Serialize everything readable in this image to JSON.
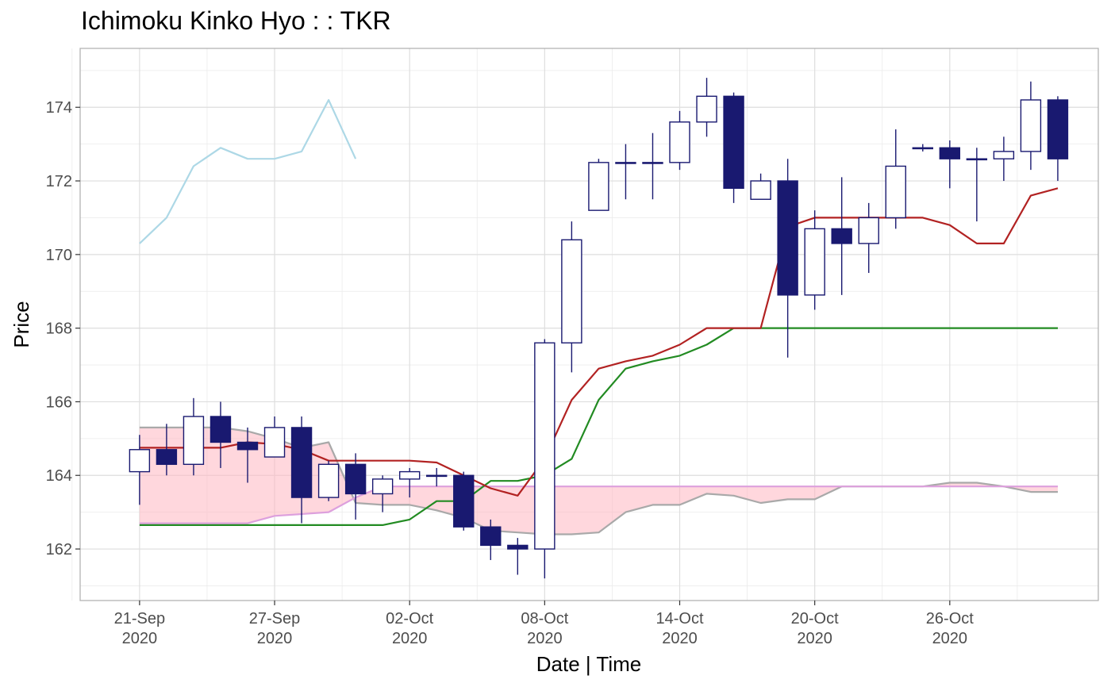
{
  "chart_data": {
    "type": "candlestick",
    "title": "Ichimoku Kinko Hyo : : TKR",
    "xlabel": "Date | Time",
    "ylabel": "Price",
    "ylim": [
      160.6,
      175.6
    ],
    "yticks": [
      162,
      164,
      166,
      168,
      170,
      172,
      174
    ],
    "xlim": [
      -2.2,
      35.5
    ],
    "xticks": [
      {
        "i": 0,
        "label1": "21-Sep",
        "label2": "2020"
      },
      {
        "i": 5,
        "label1": "27-Sep",
        "label2": "2020"
      },
      {
        "i": 10,
        "label1": "02-Oct",
        "label2": "2020"
      },
      {
        "i": 15,
        "label1": "08-Oct",
        "label2": "2020"
      },
      {
        "i": 20,
        "label1": "14-Oct",
        "label2": "2020"
      },
      {
        "i": 25,
        "label1": "20-Oct",
        "label2": "2020"
      },
      {
        "i": 30,
        "label1": "26-Oct",
        "label2": "2020"
      }
    ],
    "colors": {
      "up_fill": "#ffffff",
      "down_fill": "#191970",
      "candle_border": "#191970",
      "tenkan": "#b22222",
      "kijun": "#228b22",
      "chikou": "#add8e6",
      "cloud_fill": "#ffb6c1",
      "senkou_a": "#dda0dd",
      "senkou_b": "#a9a9a9"
    },
    "candles": [
      {
        "i": 0,
        "open": 164.1,
        "high": 165.1,
        "low": 163.2,
        "close": 164.7
      },
      {
        "i": 1,
        "open": 164.7,
        "high": 165.4,
        "low": 164.0,
        "close": 164.3
      },
      {
        "i": 2,
        "open": 164.3,
        "high": 166.1,
        "low": 164.0,
        "close": 165.6
      },
      {
        "i": 3,
        "open": 165.6,
        "high": 166.0,
        "low": 164.2,
        "close": 164.9
      },
      {
        "i": 4,
        "open": 164.9,
        "high": 165.3,
        "low": 163.8,
        "close": 164.7
      },
      {
        "i": 5,
        "open": 164.5,
        "high": 165.6,
        "low": 164.5,
        "close": 165.3
      },
      {
        "i": 6,
        "open": 165.3,
        "high": 165.6,
        "low": 162.7,
        "close": 163.4
      },
      {
        "i": 7,
        "open": 163.4,
        "high": 164.4,
        "low": 163.3,
        "close": 164.3
      },
      {
        "i": 8,
        "open": 164.3,
        "high": 164.6,
        "low": 162.8,
        "close": 163.5
      },
      {
        "i": 9,
        "open": 163.5,
        "high": 164.0,
        "low": 163.0,
        "close": 163.9
      },
      {
        "i": 10,
        "open": 163.9,
        "high": 164.2,
        "low": 163.4,
        "close": 164.1
      },
      {
        "i": 11,
        "open": 164.0,
        "high": 164.2,
        "low": 163.7,
        "close": 164.0
      },
      {
        "i": 12,
        "open": 164.0,
        "high": 164.1,
        "low": 162.5,
        "close": 162.6
      },
      {
        "i": 13,
        "open": 162.6,
        "high": 162.8,
        "low": 161.7,
        "close": 162.1
      },
      {
        "i": 14,
        "open": 162.1,
        "high": 162.3,
        "low": 161.3,
        "close": 162.0
      },
      {
        "i": 15,
        "open": 162.0,
        "high": 167.7,
        "low": 161.2,
        "close": 167.6
      },
      {
        "i": 16,
        "open": 167.6,
        "high": 170.9,
        "low": 166.8,
        "close": 170.4
      },
      {
        "i": 17,
        "open": 171.2,
        "high": 172.6,
        "low": 171.2,
        "close": 172.5
      },
      {
        "i": 18,
        "open": 172.5,
        "high": 173.0,
        "low": 171.5,
        "close": 172.5
      },
      {
        "i": 19,
        "open": 172.5,
        "high": 173.3,
        "low": 171.5,
        "close": 172.5
      },
      {
        "i": 20,
        "open": 172.5,
        "high": 173.9,
        "low": 172.3,
        "close": 173.6
      },
      {
        "i": 21,
        "open": 173.6,
        "high": 174.8,
        "low": 173.2,
        "close": 174.3
      },
      {
        "i": 22,
        "open": 174.3,
        "high": 174.4,
        "low": 171.4,
        "close": 171.8
      },
      {
        "i": 23,
        "open": 171.5,
        "high": 172.2,
        "low": 171.5,
        "close": 172.0
      },
      {
        "i": 24,
        "open": 172.0,
        "high": 172.6,
        "low": 167.2,
        "close": 168.9
      },
      {
        "i": 25,
        "open": 168.9,
        "high": 171.2,
        "low": 168.5,
        "close": 170.7
      },
      {
        "i": 26,
        "open": 170.7,
        "high": 172.1,
        "low": 168.9,
        "close": 170.3
      },
      {
        "i": 27,
        "open": 170.3,
        "high": 171.4,
        "low": 169.5,
        "close": 171.0
      },
      {
        "i": 28,
        "open": 171.0,
        "high": 173.4,
        "low": 170.7,
        "close": 172.4
      },
      {
        "i": 29,
        "open": 172.9,
        "high": 173.0,
        "low": 172.8,
        "close": 172.9
      },
      {
        "i": 30,
        "open": 172.9,
        "high": 173.1,
        "low": 171.8,
        "close": 172.6
      },
      {
        "i": 31,
        "open": 172.6,
        "high": 172.9,
        "low": 170.9,
        "close": 172.6
      },
      {
        "i": 32,
        "open": 172.6,
        "high": 173.2,
        "low": 172.0,
        "close": 172.8
      },
      {
        "i": 33,
        "open": 172.8,
        "high": 174.7,
        "low": 172.3,
        "close": 174.2
      },
      {
        "i": 34,
        "open": 174.2,
        "high": 174.3,
        "low": 172.0,
        "close": 172.6
      }
    ],
    "tenkan": [
      [
        0,
        164.75
      ],
      [
        1,
        164.75
      ],
      [
        2,
        164.75
      ],
      [
        3,
        164.75
      ],
      [
        4,
        164.9
      ],
      [
        5,
        164.85
      ],
      [
        6,
        164.7
      ],
      [
        7,
        164.4
      ],
      [
        8,
        164.4
      ],
      [
        9,
        164.4
      ],
      [
        10,
        164.4
      ],
      [
        11,
        164.35
      ],
      [
        12,
        164.0
      ],
      [
        13,
        163.65
      ],
      [
        14,
        163.45
      ],
      [
        15,
        164.45
      ],
      [
        16,
        166.05
      ],
      [
        17,
        166.9
      ],
      [
        18,
        167.1
      ],
      [
        19,
        167.25
      ],
      [
        20,
        167.55
      ],
      [
        21,
        168.0
      ],
      [
        22,
        168.0
      ],
      [
        23,
        168.0
      ],
      [
        24,
        170.75
      ],
      [
        25,
        171.0
      ],
      [
        26,
        171.0
      ],
      [
        27,
        171.0
      ],
      [
        28,
        171.0
      ],
      [
        29,
        171.0
      ],
      [
        30,
        170.8
      ],
      [
        31,
        170.3
      ],
      [
        32,
        170.3
      ],
      [
        33,
        171.6
      ],
      [
        34,
        171.8
      ]
    ],
    "kijun": [
      [
        0,
        162.65
      ],
      [
        1,
        162.65
      ],
      [
        2,
        162.65
      ],
      [
        3,
        162.65
      ],
      [
        4,
        162.65
      ],
      [
        5,
        162.65
      ],
      [
        6,
        162.65
      ],
      [
        7,
        162.65
      ],
      [
        8,
        162.65
      ],
      [
        9,
        162.65
      ],
      [
        10,
        162.8
      ],
      [
        11,
        163.3
      ],
      [
        12,
        163.3
      ],
      [
        13,
        163.85
      ],
      [
        14,
        163.85
      ],
      [
        15,
        164.0
      ],
      [
        16,
        164.45
      ],
      [
        17,
        166.05
      ],
      [
        18,
        166.9
      ],
      [
        19,
        167.1
      ],
      [
        20,
        167.25
      ],
      [
        21,
        167.55
      ],
      [
        22,
        168.0
      ],
      [
        23,
        168.0
      ],
      [
        24,
        168.0
      ],
      [
        25,
        168.0
      ],
      [
        26,
        168.0
      ],
      [
        27,
        168.0
      ],
      [
        28,
        168.0
      ],
      [
        29,
        168.0
      ],
      [
        30,
        168.0
      ],
      [
        31,
        168.0
      ],
      [
        32,
        168.0
      ],
      [
        33,
        168.0
      ],
      [
        34,
        168.0
      ]
    ],
    "chikou": [
      [
        0,
        170.3
      ],
      [
        1,
        171.0
      ],
      [
        2,
        172.4
      ],
      [
        3,
        172.9
      ],
      [
        4,
        172.6
      ],
      [
        5,
        172.6
      ],
      [
        6,
        172.8
      ],
      [
        7,
        174.2
      ],
      [
        8,
        172.6
      ]
    ],
    "senkou_a": [
      [
        0,
        162.7
      ],
      [
        1,
        162.7
      ],
      [
        2,
        162.7
      ],
      [
        3,
        162.7
      ],
      [
        4,
        162.7
      ],
      [
        5,
        162.9
      ],
      [
        6,
        162.95
      ],
      [
        7,
        163.0
      ],
      [
        8,
        163.4
      ],
      [
        9,
        163.7
      ],
      [
        10,
        163.7
      ],
      [
        11,
        163.7
      ],
      [
        12,
        163.7
      ],
      [
        13,
        163.7
      ],
      [
        14,
        163.7
      ],
      [
        15,
        163.7
      ],
      [
        16,
        163.7
      ],
      [
        17,
        163.7
      ],
      [
        18,
        163.7
      ],
      [
        19,
        163.7
      ],
      [
        20,
        163.7
      ],
      [
        21,
        163.7
      ],
      [
        22,
        163.7
      ],
      [
        23,
        163.7
      ],
      [
        24,
        163.7
      ],
      [
        25,
        163.7
      ],
      [
        26,
        163.7
      ],
      [
        27,
        163.7
      ],
      [
        28,
        163.7
      ],
      [
        29,
        163.7
      ],
      [
        30,
        163.7
      ],
      [
        31,
        163.7
      ],
      [
        32,
        163.7
      ],
      [
        33,
        163.7
      ],
      [
        34,
        163.7
      ]
    ],
    "senkou_b": [
      [
        0,
        165.3
      ],
      [
        1,
        165.3
      ],
      [
        2,
        165.3
      ],
      [
        3,
        165.3
      ],
      [
        4,
        165.2
      ],
      [
        5,
        165.0
      ],
      [
        6,
        164.75
      ],
      [
        7,
        164.9
      ],
      [
        8,
        163.25
      ],
      [
        9,
        163.2
      ],
      [
        10,
        163.2
      ],
      [
        11,
        163.05
      ],
      [
        12,
        162.85
      ],
      [
        13,
        162.5
      ],
      [
        14,
        162.45
      ],
      [
        15,
        162.4
      ],
      [
        16,
        162.4
      ],
      [
        17,
        162.45
      ],
      [
        18,
        163.0
      ],
      [
        19,
        163.2
      ],
      [
        20,
        163.2
      ],
      [
        21,
        163.5
      ],
      [
        22,
        163.45
      ],
      [
        23,
        163.25
      ],
      [
        24,
        163.35
      ],
      [
        25,
        163.35
      ],
      [
        26,
        163.7
      ],
      [
        27,
        163.7
      ],
      [
        28,
        163.7
      ],
      [
        29,
        163.7
      ],
      [
        30,
        163.8
      ],
      [
        31,
        163.8
      ],
      [
        32,
        163.7
      ],
      [
        33,
        163.55
      ],
      [
        34,
        163.55
      ]
    ]
  }
}
